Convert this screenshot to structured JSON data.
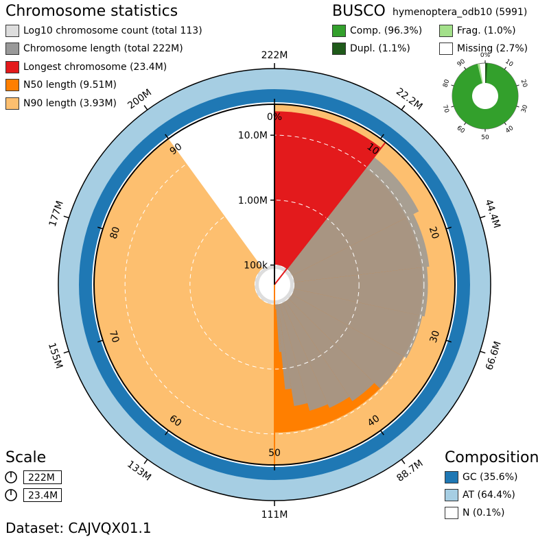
{
  "chromosome_statistics": {
    "title": "Chromosome statistics",
    "legend": [
      {
        "label": "Log10 chromosome count (total 113)",
        "color": "#dddddd"
      },
      {
        "label": "Chromosome length (total 222M)",
        "color": "#999999"
      },
      {
        "label": "Longest chromosome (23.4M)",
        "color": "#e31a1c"
      },
      {
        "label": "N50 length (9.51M)",
        "color": "#ff7f00"
      },
      {
        "label": "N90 length (3.93M)",
        "color": "#fdbf6f"
      }
    ]
  },
  "busco": {
    "title": "BUSCO",
    "lineage": "hymenoptera_odb10 (5991)",
    "legend": [
      {
        "label": "Comp. (96.3%)",
        "color": "#33a02c"
      },
      {
        "label": "Frag. (1.0%)",
        "color": "#a3e08a"
      },
      {
        "label": "Dupl. (1.1%)",
        "color": "#1f5a1a"
      },
      {
        "label": "Missing (2.7%)",
        "color": "#ffffff"
      }
    ],
    "ticks": [
      "0%",
      "10",
      "20",
      "30",
      "40",
      "50",
      "60",
      "70",
      "80",
      "90"
    ]
  },
  "scale": {
    "title": "Scale",
    "items": [
      "222M",
      "23.4M"
    ]
  },
  "composition": {
    "title": "Composition",
    "legend": [
      {
        "label": "GC (35.6%)",
        "color": "#1f78b4"
      },
      {
        "label": "AT (64.4%)",
        "color": "#a6cee3"
      },
      {
        "label": "N (0.1%)",
        "color": "#ffffff"
      }
    ]
  },
  "dataset": "Dataset: CAJVQX01.1",
  "chart_data": {
    "type": "snail",
    "total_length": "222M",
    "chromosome_count": 113,
    "longest_chromosome": "23.4M",
    "n50": "9.51M",
    "n90": "3.93M",
    "n50_percent": 50,
    "n90_percent": 90,
    "gc_percent": 35.6,
    "at_percent": 64.4,
    "n_percent": 0.1,
    "percent_ticks": [
      "0%",
      "10",
      "20",
      "30",
      "40",
      "50",
      "60",
      "70",
      "80",
      "90"
    ],
    "length_ticks": [
      "222M",
      "22.2M",
      "44.4M",
      "66.6M",
      "88.7M",
      "111M",
      "133M",
      "155M",
      "177M",
      "200M"
    ],
    "radial_scale_labels": [
      "100k",
      "1.00M",
      "10.0M"
    ],
    "busco_complete": 96.3,
    "busco_fragmented": 1.0,
    "busco_duplicated": 1.1,
    "busco_missing": 2.7,
    "length_profile_mb": [
      23.4,
      15.5,
      12.5,
      11.5,
      10.6,
      9.51,
      7.2,
      6.0,
      5.2,
      3.93,
      2.1,
      0.55,
      0.12
    ]
  }
}
